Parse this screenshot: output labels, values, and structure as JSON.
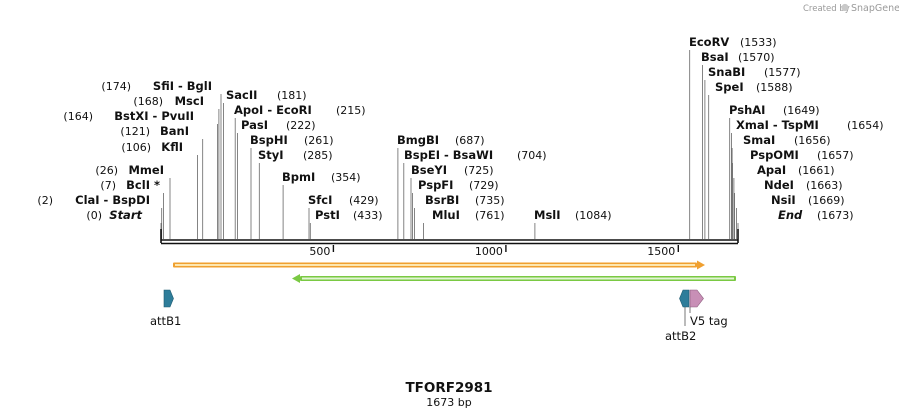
{
  "credit": {
    "prefix": "Created by",
    "brand": "SnapGene"
  },
  "map": {
    "name": "TFORF2981",
    "length_label": "1673 bp",
    "length": 1673,
    "ticks": [
      500,
      1000,
      1500
    ]
  },
  "sites": [
    {
      "name": "Start",
      "pos": "(0)",
      "bp": 0,
      "italic": true
    },
    {
      "name": "ClaI - BspDI",
      "pos": "(2)",
      "bp": 2
    },
    {
      "name": "BclI *",
      "pos": "(7)",
      "bp": 7
    },
    {
      "name": "MmeI",
      "pos": "(26)",
      "bp": 26
    },
    {
      "name": "KflI",
      "pos": "(106)",
      "bp": 106
    },
    {
      "name": "BanI",
      "pos": "(121)",
      "bp": 121
    },
    {
      "name": "BstXI - PvuII",
      "pos": "(164)",
      "bp": 164
    },
    {
      "name": "MscI",
      "pos": "(168)",
      "bp": 168
    },
    {
      "name": "SfiI - BglI",
      "pos": "(174)",
      "bp": 174
    },
    {
      "name": "SacII",
      "pos": "(181)",
      "bp": 181
    },
    {
      "name": "ApoI - EcoRI",
      "pos": "(215)",
      "bp": 215
    },
    {
      "name": "PasI",
      "pos": "(222)",
      "bp": 222
    },
    {
      "name": "BspHI",
      "pos": "(261)",
      "bp": 261
    },
    {
      "name": "StyI",
      "pos": "(285)",
      "bp": 285
    },
    {
      "name": "BpmI",
      "pos": "(354)",
      "bp": 354
    },
    {
      "name": "SfcI",
      "pos": "(429)",
      "bp": 429
    },
    {
      "name": "PstI",
      "pos": "(433)",
      "bp": 433
    },
    {
      "name": "BmgBI",
      "pos": "(687)",
      "bp": 687
    },
    {
      "name": "BspEI - BsaWI",
      "pos": "(704)",
      "bp": 704
    },
    {
      "name": "BseYI",
      "pos": "(725)",
      "bp": 725
    },
    {
      "name": "PspFI",
      "pos": "(729)",
      "bp": 729
    },
    {
      "name": "BsrBI",
      "pos": "(735)",
      "bp": 735
    },
    {
      "name": "MluI",
      "pos": "(761)",
      "bp": 761
    },
    {
      "name": "MslI",
      "pos": "(1084)",
      "bp": 1084
    },
    {
      "name": "EcoRV",
      "pos": "(1533)",
      "bp": 1533
    },
    {
      "name": "BsaI",
      "pos": "(1570)",
      "bp": 1570
    },
    {
      "name": "SnaBI",
      "pos": "(1577)",
      "bp": 1577
    },
    {
      "name": "SpeI",
      "pos": "(1588)",
      "bp": 1588
    },
    {
      "name": "PshAI",
      "pos": "(1649)",
      "bp": 1649
    },
    {
      "name": "XmaI - TspMI",
      "pos": "(1654)",
      "bp": 1654
    },
    {
      "name": "SmaI",
      "pos": "(1656)",
      "bp": 1656
    },
    {
      "name": "PspOMI",
      "pos": "(1657)",
      "bp": 1657
    },
    {
      "name": "ApaI",
      "pos": "(1661)",
      "bp": 1661
    },
    {
      "name": "NdeI",
      "pos": "(1663)",
      "bp": 1663
    },
    {
      "name": "NsiI",
      "pos": "(1669)",
      "bp": 1669
    },
    {
      "name": "End",
      "pos": "(1673)",
      "bp": 1673,
      "italic": true
    }
  ],
  "features": [
    {
      "name": "attB1",
      "kind": "attb",
      "color": "#2e7d9a"
    },
    {
      "name": "attB2",
      "kind": "attb",
      "color": "#2e7d9a"
    },
    {
      "name": "V5 tag",
      "kind": "tag",
      "color": "#c88fb6"
    }
  ],
  "orf_arrows": [
    {
      "direction": "forward",
      "color": "#f0a030",
      "inner": "#fde7b0"
    },
    {
      "direction": "reverse",
      "color": "#7ac943",
      "inner": "#e2f5d4"
    }
  ]
}
